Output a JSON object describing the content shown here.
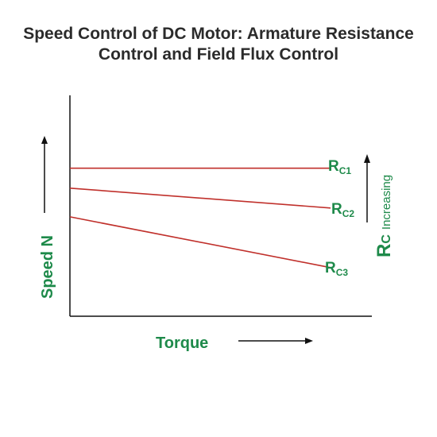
{
  "title_lines": [
    "Speed Control of DC Motor: Armature Resistance",
    "Control and Field Flux Control"
  ],
  "colors": {
    "line": "#c0302b",
    "label": "#1e8a4a",
    "axis": "#111111",
    "title": "#2b2b2b"
  },
  "chart_data": {
    "type": "line",
    "title": "Speed Control of DC Motor: Armature Resistance Control and Field Flux Control",
    "xlabel": "Torque",
    "ylabel": "Speed N",
    "xlim": [
      0,
      100
    ],
    "ylim": [
      0,
      100
    ],
    "grid": false,
    "annotation": {
      "main": "R",
      "sub": "C",
      "suffix": "Increasing"
    },
    "series": [
      {
        "label_main": "R",
        "label_sub": "C1",
        "x": [
          0,
          82
        ],
        "y": [
          67,
          67
        ]
      },
      {
        "label_main": "R",
        "label_sub": "C2",
        "x": [
          0,
          82
        ],
        "y": [
          58,
          49
        ]
      },
      {
        "label_main": "R",
        "label_sub": "C3",
        "x": [
          0,
          82
        ],
        "y": [
          45,
          22
        ]
      }
    ]
  }
}
